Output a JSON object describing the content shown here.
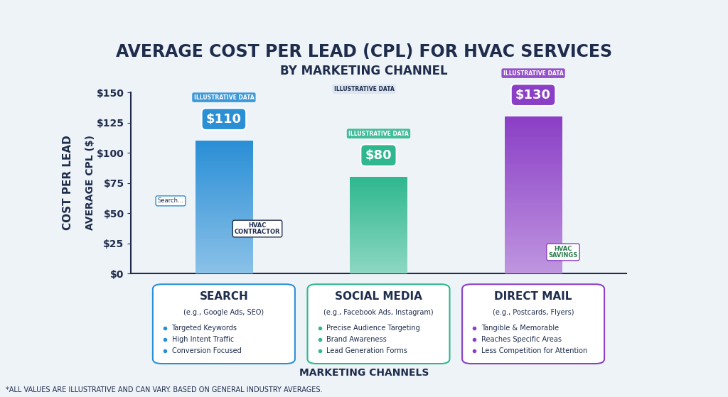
{
  "chart_data": {
    "type": "bar",
    "title": "AVERAGE COST PER LEAD (CPL) FOR HVAC SERVICES",
    "subtitle": "BY MARKETING CHANNEL",
    "badge": "ILLUSTRATIVE DATA",
    "y_label": "COST PER LEAD",
    "y_sublabel": "AVERAGE CPL ($)",
    "x_label": "MARKETING CHANNELS",
    "footnote": "*ALL VALUES ARE ILLUSTRATIVE AND CAN VARY. BASED ON GENERAL INDUSTRY AVERAGES.",
    "categories": [
      "SEARCH",
      "SOCIAL MEDIA",
      "DIRECT MAIL"
    ],
    "values": [
      110,
      80,
      130
    ],
    "value_labels": [
      "$110",
      "$80",
      "$130"
    ],
    "data_labels": true,
    "colors": [
      "#2b8fd6",
      "#2fb88f",
      "#8b3fc6"
    ],
    "ylim": [
      0,
      150
    ],
    "yticks": [
      {
        "value": 0,
        "label": "$0"
      },
      {
        "value": 25,
        "label": "$25"
      },
      {
        "value": 50,
        "label": "$50"
      },
      {
        "value": 75,
        "label": "$75"
      },
      {
        "value": 100,
        "label": "$100"
      },
      {
        "value": 125,
        "label": "$125"
      },
      {
        "value": 150,
        "label": "$150"
      }
    ],
    "grid": false,
    "channel_examples": [
      "(e.g., Google Ads, SEO)",
      "(e.g., Facebook Ads, Instagram)",
      "(e.g., Postcards, Flyers)"
    ],
    "channel_points": [
      [
        "Targeted Keywords",
        "High Intent Traffic",
        "Conversion Focused"
      ],
      [
        "Precise Audience Targeting",
        "Brand Awareness",
        "Lead Generation Forms"
      ],
      [
        "Tangible & Memorable",
        "Reaches Specific Areas",
        "Less Competition for Attention"
      ]
    ],
    "icon_texts": [
      "Search...",
      "HVAC\nCONTRACTOR",
      "HVAC\nSAVINGS"
    ]
  }
}
